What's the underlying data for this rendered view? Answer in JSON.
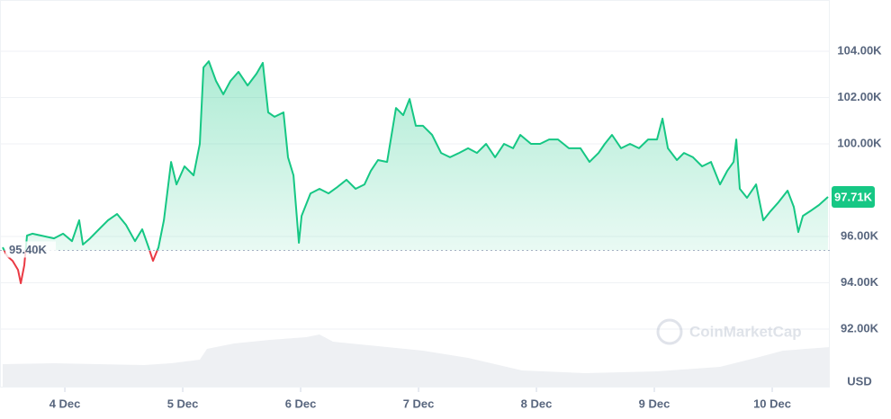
{
  "chart_data": {
    "type": "line",
    "x": [
      3.473,
      3.511,
      3.557,
      3.603,
      3.626,
      3.656,
      3.679,
      3.725,
      3.908,
      3.985,
      4.061,
      4.122,
      4.153,
      4.214,
      4.29,
      4.366,
      4.443,
      4.519,
      4.595,
      4.656,
      4.71,
      4.748,
      4.794,
      4.84,
      4.901,
      4.947,
      5.015,
      5.092,
      5.145,
      5.176,
      5.221,
      5.282,
      5.344,
      5.405,
      5.473,
      5.55,
      5.626,
      5.679,
      5.725,
      5.779,
      5.855,
      5.893,
      5.939,
      5.985,
      6.008,
      6.084,
      6.16,
      6.237,
      6.313,
      6.389,
      6.466,
      6.542,
      6.595,
      6.656,
      6.733,
      6.809,
      6.87,
      6.924,
      6.977,
      7.038,
      7.115,
      7.191,
      7.267,
      7.344,
      7.42,
      7.496,
      7.573,
      7.649,
      7.725,
      7.802,
      7.863,
      7.954,
      8.031,
      8.107,
      8.183,
      8.275,
      8.374,
      8.45,
      8.527,
      8.58,
      8.641,
      8.718,
      8.794,
      8.87,
      8.947,
      9.023,
      9.069,
      9.115,
      9.191,
      9.252,
      9.328,
      9.405,
      9.481,
      9.557,
      9.618,
      9.672,
      9.695,
      9.725,
      9.786,
      9.863,
      9.924,
      9.985,
      10.053,
      10.13,
      10.183,
      10.221,
      10.26,
      10.321,
      10.397,
      10.473
    ],
    "values": [
      95530,
      95150,
      94950,
      94560,
      93980,
      94760,
      96040,
      96120,
      95920,
      96120,
      95800,
      96700,
      95650,
      95920,
      96310,
      96700,
      96970,
      96500,
      95800,
      96310,
      95530,
      94950,
      95530,
      96700,
      99220,
      98250,
      99030,
      98640,
      100000,
      103300,
      103570,
      102720,
      102140,
      102720,
      103110,
      102520,
      103030,
      103500,
      101360,
      101170,
      101360,
      99420,
      98640,
      95730,
      96890,
      97860,
      98060,
      97860,
      98140,
      98450,
      98060,
      98250,
      98830,
      99300,
      99220,
      101550,
      101240,
      101940,
      100780,
      100780,
      100390,
      99610,
      99420,
      99610,
      99810,
      99610,
      100000,
      99420,
      100000,
      99810,
      100390,
      100000,
      100000,
      100190,
      100190,
      99810,
      99810,
      99220,
      99610,
      100000,
      100390,
      99810,
      100000,
      99810,
      100190,
      100190,
      101090,
      99810,
      99300,
      99610,
      99420,
      99030,
      99220,
      98250,
      98830,
      99220,
      100190,
      98060,
      97670,
      98250,
      96700,
      97090,
      97480,
      97980,
      97280,
      96190,
      96890,
      97090,
      97360,
      97710
    ],
    "color": "#16c784",
    "down_color": "#ea3943",
    "xlim": [
      3.45,
      10.47
    ],
    "xticks": [
      {
        "value": 4,
        "label": "4 Dec"
      },
      {
        "value": 5,
        "label": "5 Dec"
      },
      {
        "value": 6,
        "label": "6 Dec"
      },
      {
        "value": 7,
        "label": "7 Dec"
      },
      {
        "value": 8,
        "label": "8 Dec"
      },
      {
        "value": 9,
        "label": "9 Dec"
      },
      {
        "value": 10,
        "label": "10 Dec"
      }
    ],
    "ylim": [
      89500,
      106000
    ],
    "yticks": [
      {
        "value": 92000,
        "label": "92.00K"
      },
      {
        "value": 94000,
        "label": "94.00K"
      },
      {
        "value": 96000,
        "label": "96.00K"
      },
      {
        "value": 100000,
        "label": "100.00K"
      },
      {
        "value": 102000,
        "label": "102.00K"
      },
      {
        "value": 104000,
        "label": "104.00K"
      }
    ],
    "baseline": {
      "value": 95400,
      "label": "95.40K"
    },
    "last_price": {
      "value": 97710,
      "label": "97.71K"
    },
    "unit": "USD",
    "watermark": "CoinMarketCap",
    "grid": true
  }
}
